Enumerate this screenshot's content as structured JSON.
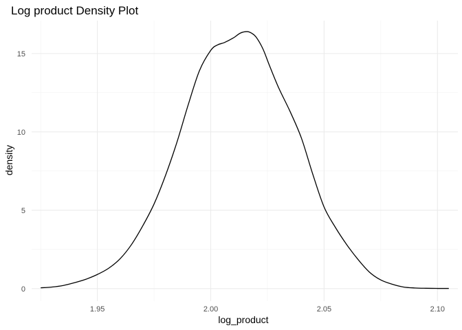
{
  "chart_data": {
    "type": "line",
    "title": "Log product Density Plot",
    "xlabel": "log_product",
    "ylabel": "density",
    "xlim": [
      1.921,
      2.109
    ],
    "ylim": [
      -0.8,
      17.1
    ],
    "x_ticks": [
      1.95,
      2.0,
      2.05,
      2.1
    ],
    "x_tick_labels": [
      "1.95",
      "2.00",
      "2.05",
      "2.10"
    ],
    "x_minor_ticks": [
      1.925,
      1.975,
      2.025,
      2.075
    ],
    "y_ticks": [
      0,
      5,
      10,
      15
    ],
    "y_tick_labels": [
      "0",
      "5",
      "10",
      "15"
    ],
    "y_minor_ticks": [
      2.5,
      7.5,
      12.5
    ],
    "grid": true,
    "legend": "none",
    "line_color": "#000000",
    "series": [
      {
        "x": [
          1.925,
          1.93,
          1.935,
          1.94,
          1.945,
          1.95,
          1.955,
          1.96,
          1.965,
          1.97,
          1.975,
          1.98,
          1.985,
          1.99,
          1.995,
          2.0,
          2.003,
          2.006,
          2.01,
          2.013,
          2.016,
          2.018,
          2.02,
          2.023,
          2.026,
          2.03,
          2.035,
          2.04,
          2.045,
          2.05,
          2.055,
          2.06,
          2.065,
          2.07,
          2.075,
          2.08,
          2.085,
          2.09,
          2.095,
          2.1,
          2.105
        ],
        "values": [
          0.05,
          0.1,
          0.2,
          0.38,
          0.6,
          0.9,
          1.3,
          1.9,
          2.8,
          4.0,
          5.4,
          7.2,
          9.3,
          11.7,
          13.9,
          15.2,
          15.55,
          15.7,
          16.0,
          16.3,
          16.4,
          16.3,
          16.05,
          15.3,
          14.2,
          12.8,
          11.3,
          9.6,
          7.3,
          5.2,
          3.9,
          2.8,
          1.85,
          1.05,
          0.55,
          0.28,
          0.1,
          0.04,
          0.02,
          0.01,
          0.01
        ]
      }
    ]
  }
}
